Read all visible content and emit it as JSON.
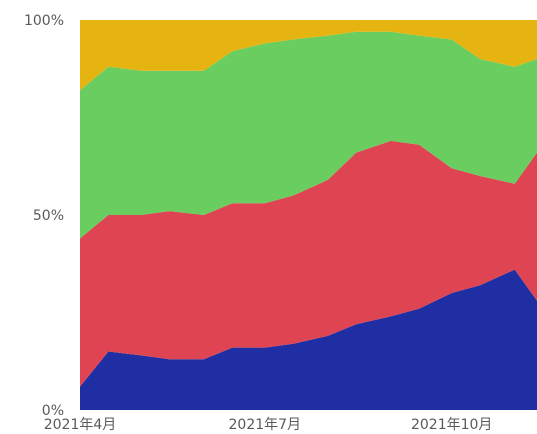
{
  "chart_data": {
    "type": "area",
    "stacked": true,
    "normalized": true,
    "title": "",
    "xlabel": "",
    "ylabel": "",
    "ylim": [
      0,
      100
    ],
    "y_ticks": [
      {
        "value": 0,
        "label": "0%"
      },
      {
        "value": 50,
        "label": "50%"
      },
      {
        "value": 100,
        "label": "100%"
      }
    ],
    "x_ticks": [
      {
        "date": "2021-04-01",
        "label": "2021年4月"
      },
      {
        "date": "2021-07-01",
        "label": "2021年7月"
      },
      {
        "date": "2021-10-01",
        "label": "2021年10月"
      }
    ],
    "xlim": [
      "2021-04-01",
      "2021-11-12"
    ],
    "grid": false,
    "legend": "none",
    "series_colors": [
      "#1f2fa3",
      "#de4452",
      "#6acd5f",
      "#e6b410"
    ],
    "series": [
      {
        "values_by_date": [
          [
            "2021-04-01",
            6
          ],
          [
            "2021-04-15",
            15
          ],
          [
            "2021-05-01",
            14
          ],
          [
            "2021-05-15",
            13
          ],
          [
            "2021-06-01",
            13
          ],
          [
            "2021-06-15",
            16
          ],
          [
            "2021-07-01",
            16
          ],
          [
            "2021-07-15",
            17
          ],
          [
            "2021-08-01",
            19
          ],
          [
            "2021-08-15",
            22
          ],
          [
            "2021-09-01",
            24
          ],
          [
            "2021-09-15",
            26
          ],
          [
            "2021-10-01",
            30
          ],
          [
            "2021-10-15",
            32
          ],
          [
            "2021-11-01",
            36
          ],
          [
            "2021-11-12",
            28
          ]
        ]
      },
      {
        "values_by_date": [
          [
            "2021-04-01",
            38
          ],
          [
            "2021-04-15",
            35
          ],
          [
            "2021-05-01",
            36
          ],
          [
            "2021-05-15",
            38
          ],
          [
            "2021-06-01",
            37
          ],
          [
            "2021-06-15",
            37
          ],
          [
            "2021-07-01",
            37
          ],
          [
            "2021-07-15",
            38
          ],
          [
            "2021-08-01",
            40
          ],
          [
            "2021-08-15",
            44
          ],
          [
            "2021-09-01",
            45
          ],
          [
            "2021-09-15",
            42
          ],
          [
            "2021-10-01",
            32
          ],
          [
            "2021-10-15",
            28
          ],
          [
            "2021-11-01",
            22
          ],
          [
            "2021-11-12",
            38
          ]
        ]
      },
      {
        "values_by_date": [
          [
            "2021-04-01",
            38
          ],
          [
            "2021-04-15",
            38
          ],
          [
            "2021-05-01",
            37
          ],
          [
            "2021-05-15",
            36
          ],
          [
            "2021-06-01",
            37
          ],
          [
            "2021-06-15",
            39
          ],
          [
            "2021-07-01",
            41
          ],
          [
            "2021-07-15",
            40
          ],
          [
            "2021-08-01",
            37
          ],
          [
            "2021-08-15",
            31
          ],
          [
            "2021-09-01",
            28
          ],
          [
            "2021-09-15",
            28
          ],
          [
            "2021-10-01",
            33
          ],
          [
            "2021-10-15",
            30
          ],
          [
            "2021-11-01",
            30
          ],
          [
            "2021-11-12",
            24
          ]
        ]
      },
      {
        "values_by_date": [
          [
            "2021-04-01",
            18
          ],
          [
            "2021-04-15",
            12
          ],
          [
            "2021-05-01",
            13
          ],
          [
            "2021-05-15",
            13
          ],
          [
            "2021-06-01",
            13
          ],
          [
            "2021-06-15",
            8
          ],
          [
            "2021-07-01",
            6
          ],
          [
            "2021-07-15",
            5
          ],
          [
            "2021-08-01",
            4
          ],
          [
            "2021-08-15",
            3
          ],
          [
            "2021-09-01",
            3
          ],
          [
            "2021-09-15",
            4
          ],
          [
            "2021-10-01",
            5
          ],
          [
            "2021-10-15",
            10
          ],
          [
            "2021-11-01",
            12
          ],
          [
            "2021-11-12",
            10
          ]
        ]
      }
    ]
  }
}
